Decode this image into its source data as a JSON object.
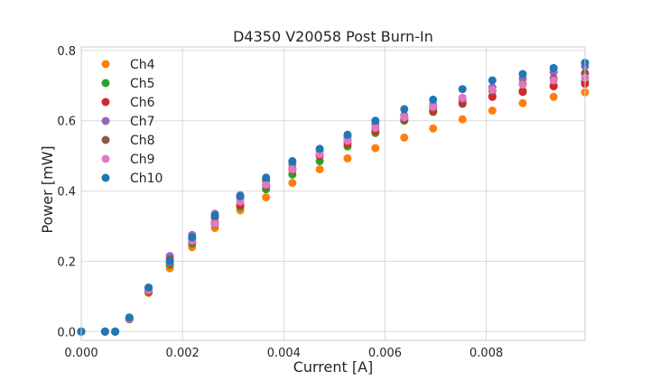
{
  "chart_data": {
    "type": "scatter",
    "title": "D4350 V20058 Post Burn-In",
    "xlabel": "Current [A]",
    "ylabel": "Power [mW]",
    "xlim": [
      0,
      0.00995
    ],
    "ylim": [
      -0.025,
      0.81
    ],
    "xticks": [
      0,
      0.002,
      0.004,
      0.006,
      0.008
    ],
    "xtick_labels": [
      "0.000",
      "0.002",
      "0.004",
      "0.006",
      "0.008"
    ],
    "yticks": [
      0,
      0.2,
      0.4,
      0.6,
      0.8
    ],
    "ytick_labels": [
      "0.0",
      "0.2",
      "0.4",
      "0.6",
      "0.8"
    ],
    "grid": true,
    "legend_position": "top-left",
    "x": [
      0,
      0.00047,
      0.00067,
      0.00095,
      0.00133,
      0.00175,
      0.00219,
      0.00264,
      0.00314,
      0.00365,
      0.00417,
      0.00471,
      0.00526,
      0.00581,
      0.00638,
      0.00695,
      0.00753,
      0.00812,
      0.00872,
      0.00933,
      0.00995
    ],
    "series": [
      {
        "name": "Ch4",
        "color": "#ff7f0e",
        "values": [
          0.0,
          0.0,
          0.0,
          0.035,
          0.11,
          0.18,
          0.24,
          0.295,
          0.345,
          0.382,
          0.423,
          0.462,
          0.493,
          0.522,
          0.552,
          0.578,
          0.604,
          0.629,
          0.65,
          0.668,
          0.681
        ]
      },
      {
        "name": "Ch5",
        "color": "#2ca02c",
        "values": [
          0.0,
          0.0,
          0.0,
          0.035,
          0.112,
          0.19,
          0.25,
          0.305,
          0.355,
          0.405,
          0.447,
          0.485,
          0.527,
          0.565,
          0.6,
          0.625,
          0.648,
          0.67,
          0.685,
          0.7,
          0.712
        ]
      },
      {
        "name": "Ch6",
        "color": "#d62728",
        "values": [
          0.0,
          0.0,
          0.0,
          0.036,
          0.115,
          0.195,
          0.255,
          0.31,
          0.36,
          0.415,
          0.46,
          0.5,
          0.535,
          0.57,
          0.603,
          0.628,
          0.65,
          0.668,
          0.682,
          0.698,
          0.705
        ]
      },
      {
        "name": "Ch7",
        "color": "#9467bd",
        "values": [
          0.0,
          0.0,
          0.0,
          0.04,
          0.125,
          0.215,
          0.275,
          0.335,
          0.388,
          0.435,
          0.478,
          0.515,
          0.555,
          0.59,
          0.615,
          0.645,
          0.665,
          0.695,
          0.72,
          0.738,
          0.755
        ]
      },
      {
        "name": "Ch8",
        "color": "#8c564b",
        "values": [
          0.0,
          0.0,
          0.0,
          0.038,
          0.12,
          0.205,
          0.265,
          0.325,
          0.38,
          0.43,
          0.465,
          0.505,
          0.545,
          0.575,
          0.605,
          0.635,
          0.66,
          0.685,
          0.705,
          0.72,
          0.735
        ]
      },
      {
        "name": "Ch9",
        "color": "#e377c2",
        "values": [
          0.0,
          0.0,
          0.0,
          0.037,
          0.118,
          0.198,
          0.258,
          0.307,
          0.37,
          0.418,
          0.462,
          0.505,
          0.543,
          0.58,
          0.61,
          0.64,
          0.665,
          0.688,
          0.703,
          0.715,
          0.722
        ]
      },
      {
        "name": "Ch10",
        "color": "#1f77b4",
        "values": [
          0.0,
          0.0,
          0.0,
          0.04,
          0.125,
          0.2,
          0.268,
          0.33,
          0.385,
          0.438,
          0.485,
          0.52,
          0.56,
          0.6,
          0.633,
          0.66,
          0.69,
          0.715,
          0.733,
          0.75,
          0.765
        ]
      }
    ]
  }
}
